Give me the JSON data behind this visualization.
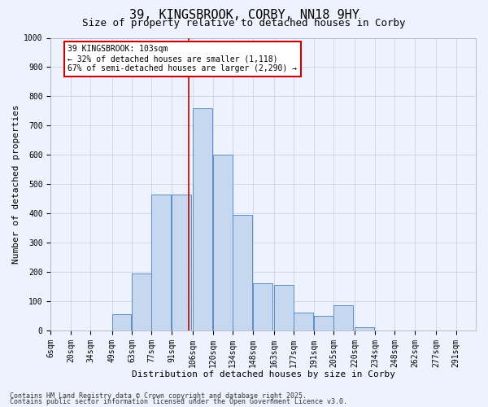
{
  "title": "39, KINGSBROOK, CORBY, NN18 9HY",
  "subtitle": "Size of property relative to detached houses in Corby",
  "xlabel": "Distribution of detached houses by size in Corby",
  "ylabel": "Number of detached properties",
  "bins": [
    6,
    20,
    34,
    49,
    63,
    77,
    91,
    106,
    120,
    134,
    148,
    163,
    177,
    191,
    205,
    220,
    234,
    248,
    262,
    277,
    291
  ],
  "bar_heights": [
    0,
    0,
    0,
    55,
    195,
    465,
    465,
    760,
    600,
    395,
    160,
    155,
    60,
    50,
    85,
    10,
    0,
    0,
    0,
    0
  ],
  "bar_color": "#c5d8f0",
  "bar_edge_color": "#5b8ec4",
  "vline_x": 103,
  "vline_color": "#cc0000",
  "annotation_text": "39 KINGSBROOK: 103sqm\n← 32% of detached houses are smaller (1,118)\n67% of semi-detached houses are larger (2,290) →",
  "annotation_box_color": "#ffffff",
  "annotation_box_edge_color": "#cc0000",
  "ylim": [
    0,
    1000
  ],
  "yticks": [
    0,
    100,
    200,
    300,
    400,
    500,
    600,
    700,
    800,
    900,
    1000
  ],
  "footer_line1": "Contains HM Land Registry data © Crown copyright and database right 2025.",
  "footer_line2": "Contains public sector information licensed under the Open Government Licence v3.0.",
  "bg_color": "#eef2fc",
  "grid_color": "#c8d4e8",
  "title_fontsize": 11,
  "subtitle_fontsize": 9,
  "axis_label_fontsize": 8,
  "tick_fontsize": 7,
  "annotation_fontsize": 7,
  "footer_fontsize": 6
}
